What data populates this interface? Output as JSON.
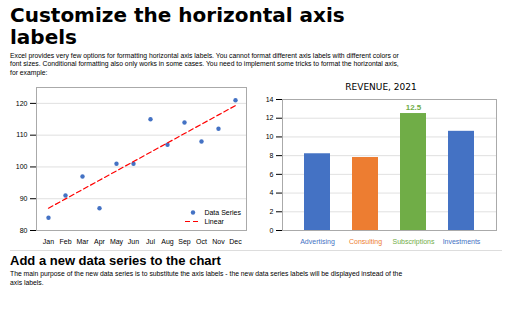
{
  "title_lines": [
    "Customize the horizontal axis",
    "labels"
  ],
  "body_lines": [
    "Excel provides very few options for formatting horizontal axis labels. You cannot format different axis labels with different colors or",
    "font sizes. Conditional formatting also only works in some cases. You need to implement some tricks to format the horizontal axis,",
    "for example:"
  ],
  "section_title": "Add a new data series to the chart",
  "section_lines": [
    "The main purpose of the new data series is to substitute the axis labels - the new data series labels will be displayed instead of the",
    "axis labels."
  ],
  "chart_data": [
    {
      "type": "scatter",
      "categories": [
        "Jan",
        "Feb",
        "Mar",
        "Apr",
        "May",
        "Jun",
        "Jul",
        "Aug",
        "Sep",
        "Oct",
        "Nov",
        "Dec"
      ],
      "series": [
        {
          "name": "Data Series",
          "type": "scatter",
          "marker": "o",
          "color": "#4472C4",
          "values": [
            84,
            91,
            97,
            87,
            101,
            101,
            115,
            107,
            114,
            108,
            112,
            121
          ]
        },
        {
          "name": "Linear",
          "type": "line",
          "line_style": "dashed",
          "color": "#FF0000",
          "values": [
            87.013,
            89.95,
            92.887,
            95.824,
            98.761,
            101.698,
            104.635,
            107.572,
            110.509,
            113.446,
            116.383,
            119.321
          ]
        }
      ],
      "ylim": [
        80,
        125
      ],
      "yticks": [
        80,
        90,
        100,
        110,
        120
      ],
      "grid": true,
      "legend": "lower right"
    },
    {
      "type": "bar",
      "title": "REVENUE, 2021",
      "categories": [
        "Advertising",
        "Consulting",
        "Subscriptions",
        "Investments"
      ],
      "values": [
        8.2,
        7.8,
        12.5,
        10.6
      ],
      "colors": [
        "#4472C4",
        "#ED7D31",
        "#70AD47",
        "#4472C4"
      ],
      "ylim": [
        0,
        14
      ],
      "yticks": [
        0,
        2,
        4,
        6,
        8,
        10,
        12,
        14
      ],
      "grid": true,
      "annotations": [
        {
          "text": "12.5",
          "category": "Subscriptions",
          "value": 12.5,
          "color": "#70AD47"
        }
      ]
    }
  ]
}
